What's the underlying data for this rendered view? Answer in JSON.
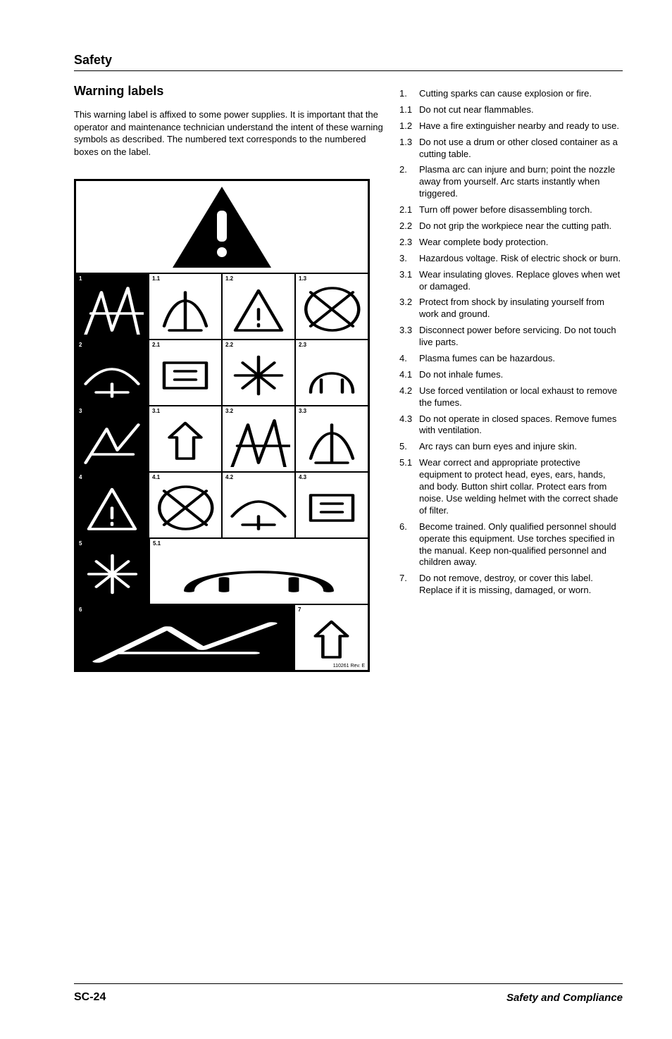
{
  "section_title": "Safety",
  "heading": "Warning labels",
  "intro": "This warning label is affixed to some power supplies. It is important that the operator and maintenance technician understand the intent of these warning symbols as described. The numbered text corresponds to the numbered boxes on the label.",
  "figure": {
    "revision": "110261 Rev. E",
    "rows": [
      {
        "cells": [
          {
            "num": "1",
            "black": true
          },
          {
            "num": "1.1"
          },
          {
            "num": "1.2"
          },
          {
            "num": "1.3"
          }
        ]
      },
      {
        "cells": [
          {
            "num": "2",
            "black": true
          },
          {
            "num": "2.1"
          },
          {
            "num": "2.2"
          },
          {
            "num": "2.3"
          }
        ]
      },
      {
        "cells": [
          {
            "num": "3",
            "black": true
          },
          {
            "num": "3.1"
          },
          {
            "num": "3.2"
          },
          {
            "num": "3.3"
          }
        ]
      },
      {
        "cells": [
          {
            "num": "4",
            "black": true
          },
          {
            "num": "4.1"
          },
          {
            "num": "4.2"
          },
          {
            "num": "4.3"
          }
        ]
      },
      {
        "cells": [
          {
            "num": "5",
            "black": true
          },
          {
            "num": "5.1",
            "span": 3
          }
        ]
      },
      {
        "cells": [
          {
            "num": "6",
            "black": true,
            "span": 3
          },
          {
            "num": "7"
          }
        ]
      }
    ]
  },
  "items": [
    {
      "num": "1.",
      "text": "Cutting sparks can cause explosion or fire."
    },
    {
      "num": "1.1",
      "text": "Do not cut near flammables."
    },
    {
      "num": "1.2",
      "text": "Have a fire extinguisher nearby and ready to use."
    },
    {
      "num": "1.3",
      "text": "Do not use a drum or other closed container as a cutting table."
    },
    {
      "num": "2.",
      "text": "Plasma arc can injure and burn; point the nozzle away from yourself. Arc starts instantly when triggered."
    },
    {
      "num": "2.1",
      "text": "Turn off power before disassembling torch."
    },
    {
      "num": "2.2",
      "text": "Do not grip the workpiece near the cutting path."
    },
    {
      "num": "2.3",
      "text": "Wear complete body protection."
    },
    {
      "num": "3.",
      "text": "Hazardous voltage. Risk of electric shock or burn."
    },
    {
      "num": "3.1",
      "text": "Wear insulating gloves. Replace gloves when wet or damaged."
    },
    {
      "num": "3.2",
      "text": "Protect from shock by insulating yourself from work and ground."
    },
    {
      "num": "3.3",
      "text": "Disconnect power before servicing. Do not touch live parts."
    },
    {
      "num": "4.",
      "text": "Plasma fumes can be hazardous."
    },
    {
      "num": "4.1",
      "text": "Do not inhale fumes."
    },
    {
      "num": "4.2",
      "text": "Use forced ventilation or local exhaust to remove the fumes."
    },
    {
      "num": "4.3",
      "text": "Do not operate in closed spaces. Remove fumes with ventilation."
    },
    {
      "num": "5.",
      "text": "Arc rays can burn eyes and injure skin."
    },
    {
      "num": "5.1",
      "text": "Wear correct and appropriate protective equipment to protect head, eyes, ears, hands, and body. Button shirt collar. Protect ears from noise. Use welding helmet with the correct shade of filter."
    },
    {
      "num": "6.",
      "text": "Become trained. Only qualified personnel should operate this equipment. Use torches specified in the manual. Keep non-qualified personnel and children away."
    },
    {
      "num": "7.",
      "text": "Do not remove, destroy, or cover this label. Replace if it is missing, damaged, or worn."
    }
  ],
  "footer": {
    "page_num": "SC-24",
    "doc_title": "Safety and Compliance"
  }
}
